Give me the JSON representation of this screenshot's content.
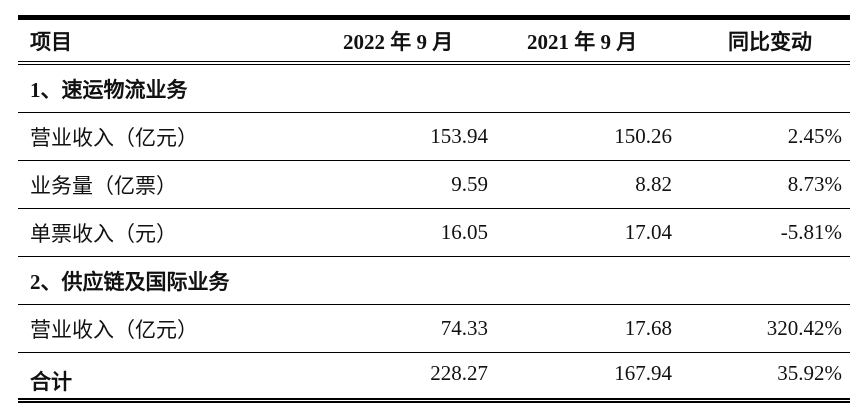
{
  "header": [
    "项目",
    "2022 年 9 月",
    "2021 年 9 月",
    "同比变动"
  ],
  "rows": [
    {
      "label": "1、速运物流业务",
      "section": true
    },
    {
      "label": "营业收入（亿元）",
      "v2022": "153.94",
      "v2021": "150.26",
      "change": "2.45%"
    },
    {
      "label": "业务量（亿票）",
      "v2022": "9.59",
      "v2021": "8.82",
      "change": "8.73%"
    },
    {
      "label": "单票收入（元）",
      "v2022": "16.05",
      "v2021": "17.04",
      "change": "-5.81%"
    },
    {
      "label": "2、供应链及国际业务",
      "section": true
    },
    {
      "label": "营业收入（亿元）",
      "v2022": "74.33",
      "v2021": "17.68",
      "change": "320.42%"
    },
    {
      "label": "合计",
      "v2022": "228.27",
      "v2021": "167.94",
      "change": "35.92%"
    }
  ]
}
